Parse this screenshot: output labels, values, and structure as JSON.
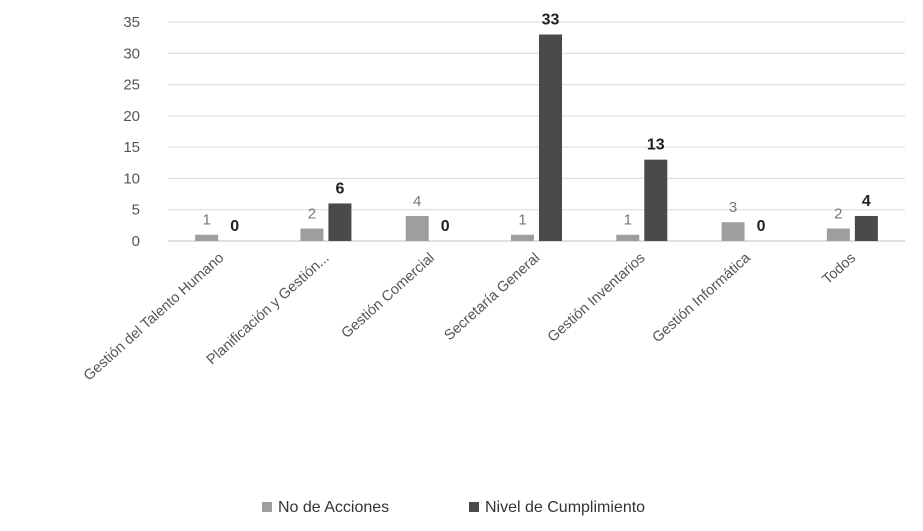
{
  "chart_data": {
    "type": "bar",
    "categories": [
      "Gestión del Talento Humano",
      "Planificación y Gestión...",
      "Gestión Comercial",
      "Secretaría General",
      "Gestión Inventarios",
      "Gestión Informática",
      "Todos"
    ],
    "series": [
      {
        "name": "No de Acciones",
        "values": [
          1,
          2,
          4,
          1,
          1,
          3,
          2
        ],
        "color": "#9e9e9e"
      },
      {
        "name": "Nivel de Cumplimiento",
        "values": [
          0,
          6,
          0,
          33,
          13,
          0,
          4
        ],
        "color": "#4a4a4a"
      }
    ],
    "y_ticks": [
      0,
      5,
      10,
      15,
      20,
      25,
      30,
      35
    ],
    "ylim": [
      0,
      35
    ],
    "grid": true,
    "legend_position": "bottom"
  }
}
